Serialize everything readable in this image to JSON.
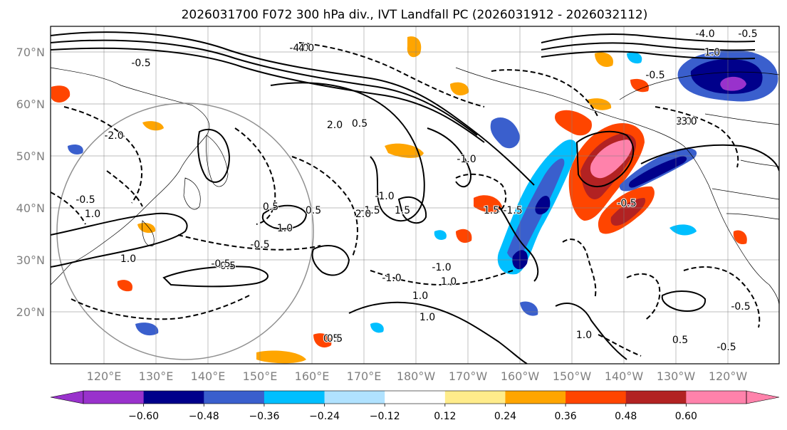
{
  "title": "2026031700 F072 300 hPa div., IVT Landfall PC (2026031912 - 2026032112)",
  "lat_labels": [
    "70°N",
    "60°N",
    "50°N",
    "40°N",
    "30°N",
    "20°N"
  ],
  "lon_labels": [
    "120°E",
    "130°E",
    "140°E",
    "150°E",
    "160°E",
    "170°E",
    "180°W",
    "170°W",
    "160°W",
    "150°W",
    "140°W",
    "130°W",
    "120°W"
  ],
  "colorbar": {
    "ticks": [
      "−0.60",
      "−0.48",
      "−0.36",
      "−0.24",
      "−0.12",
      "0.12",
      "0.24",
      "0.36",
      "0.48",
      "0.60"
    ],
    "colors": [
      "#9932cc",
      "#00008b",
      "#3a5fcd",
      "#00bfff",
      "#b0e2ff",
      "#ffffff",
      "#ffec8b",
      "#ffa500",
      "#ff4500",
      "#b22222",
      "#ff82ab",
      "#ff82ab"
    ]
  },
  "contour_labels": [
    "-0.5",
    "-2.0",
    "-0.5",
    "1.0",
    "-4.0",
    "0.5",
    "-1.0",
    "1.5",
    "-1.5",
    "2.0",
    "4.0",
    "-4.0",
    "1.0",
    "3.0",
    "-3.0",
    "-1.0",
    "1.0",
    "2.0",
    "0.5",
    "-1.0",
    "-1.5",
    "1.0",
    "-0.5",
    "-1.0",
    "1.5",
    "1.0",
    "0.5",
    "-0.5",
    "0.5",
    "-0.5",
    "-0.5",
    "1.0",
    "0.5",
    "0.5",
    "1.0",
    "-0.5",
    "0.5",
    "1.0",
    "-0.5",
    "-0.5"
  ]
}
